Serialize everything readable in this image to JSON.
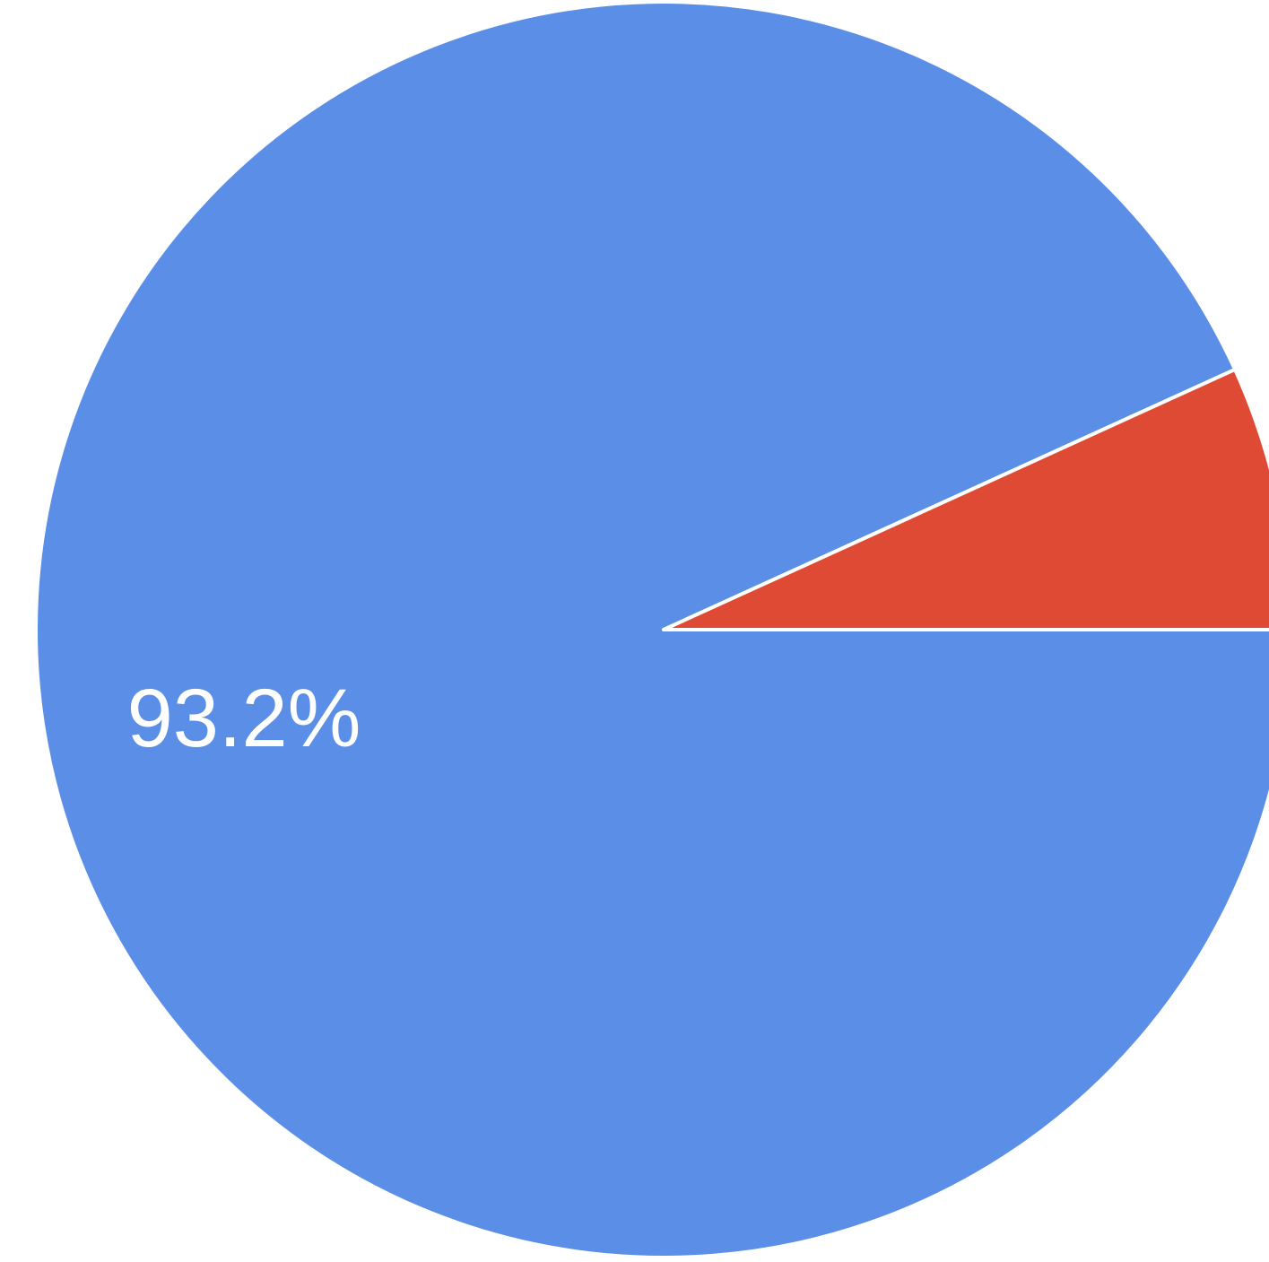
{
  "chart_data": {
    "type": "pie",
    "slices": [
      {
        "value": 93.2,
        "label": "93.2%",
        "color": "#5b8ee6"
      },
      {
        "value": 6.8,
        "label": "",
        "color": "#de4a33"
      }
    ],
    "start_direction": "east",
    "direction": "counterclockwise_for_second_slice",
    "legend": "none"
  }
}
